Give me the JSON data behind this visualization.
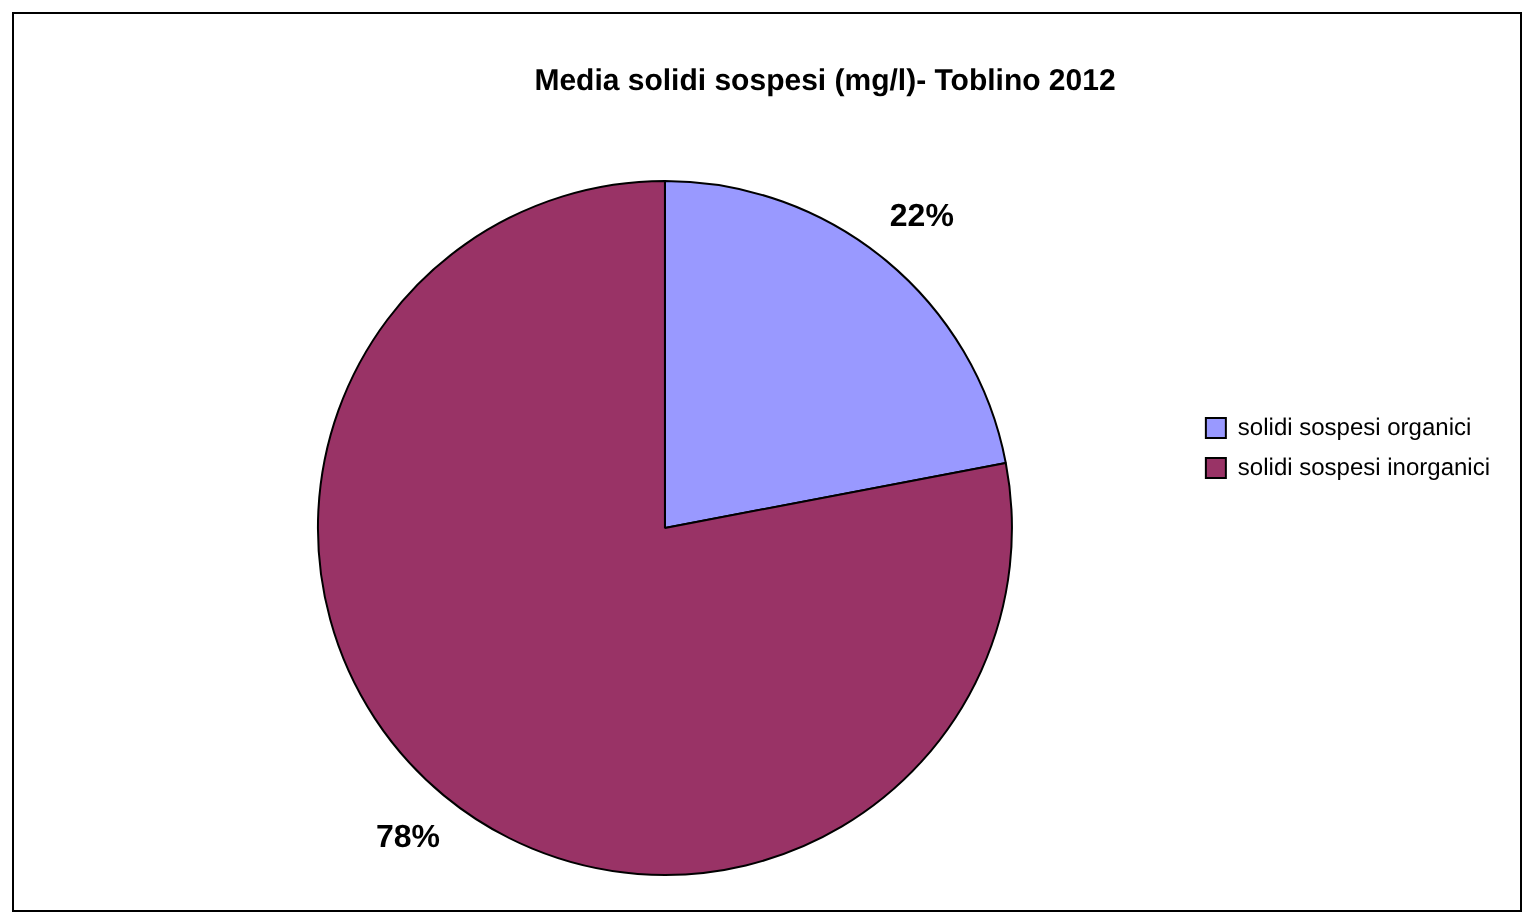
{
  "chart_data": {
    "type": "pie",
    "title": "Media solidi sospesi (mg/l)- Toblino 2012",
    "categories": [
      "solidi sospesi organici",
      "solidi sospesi inorganici"
    ],
    "values": [
      22,
      78
    ],
    "colors": [
      "#9999ff",
      "#993366"
    ],
    "value_labels": [
      "22%",
      "78%"
    ],
    "legend": "right"
  }
}
